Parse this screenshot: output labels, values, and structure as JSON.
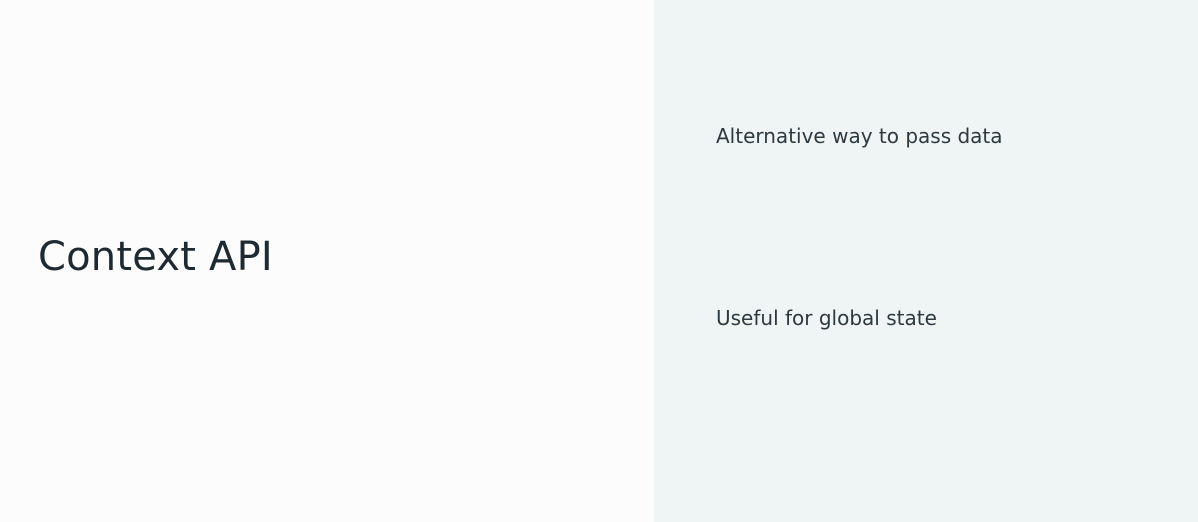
{
  "slide": {
    "title": "Context API",
    "points": [
      "Alternative way to pass data",
      "Useful for global state"
    ]
  },
  "colors": {
    "left_background": "#fcfcfc",
    "right_background": "#eff4f4",
    "text": "#1e2a31"
  }
}
